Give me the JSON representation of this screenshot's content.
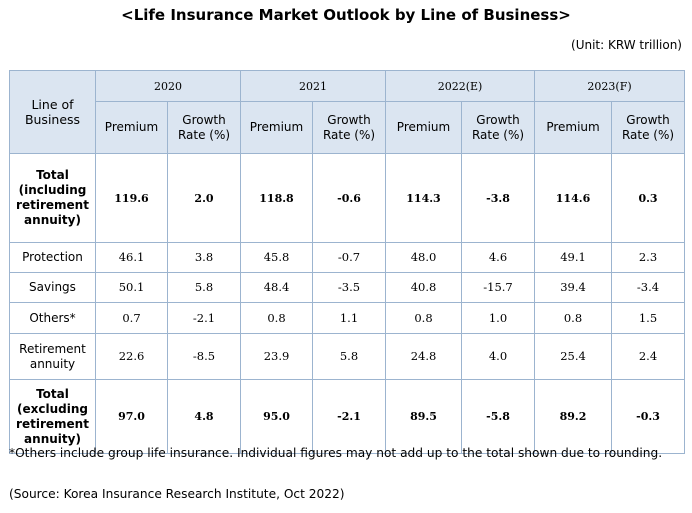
{
  "title": "<Life Insurance Market Outlook by Line of Business>",
  "unit": "(Unit: KRW trillion)",
  "table": {
    "corner_label": "Line of Business",
    "years": [
      "2020",
      "2021",
      "2022(E)",
      "2023(F)"
    ],
    "sub_headers": {
      "premium": "Premium",
      "growth": "Growth Rate (%)"
    },
    "rows": [
      {
        "label": "Total (including retirement annuity)",
        "bold": true,
        "values": [
          "119.6",
          "2.0",
          "118.8",
          "-0.6",
          "114.3",
          "-3.8",
          "114.6",
          "0.3"
        ]
      },
      {
        "label": "Protection",
        "bold": false,
        "values": [
          "46.1",
          "3.8",
          "45.8",
          "-0.7",
          "48.0",
          "4.6",
          "49.1",
          "2.3"
        ]
      },
      {
        "label": "Savings",
        "bold": false,
        "values": [
          "50.1",
          "5.8",
          "48.4",
          "-3.5",
          "40.8",
          "-15.7",
          "39.4",
          "-3.4"
        ]
      },
      {
        "label": "Others*",
        "bold": false,
        "values": [
          "0.7",
          "-2.1",
          "0.8",
          "1.1",
          "0.8",
          "1.0",
          "0.8",
          "1.5"
        ]
      },
      {
        "label": "Retirement annuity",
        "bold": false,
        "values": [
          "22.6",
          "-8.5",
          "23.9",
          "5.8",
          "24.8",
          "4.0",
          "25.4",
          "2.4"
        ]
      },
      {
        "label": "Total (excluding retirement annuity)",
        "bold": true,
        "values": [
          "97.0",
          "4.8",
          "95.0",
          "-2.1",
          "89.5",
          "-5.8",
          "89.2",
          "-0.3"
        ]
      }
    ]
  },
  "footnote": "*Others include group life insurance. Individual figures may not add up to the total shown due to rounding.",
  "source": "(Source: Korea Insurance Research Institute, Oct 2022)"
}
